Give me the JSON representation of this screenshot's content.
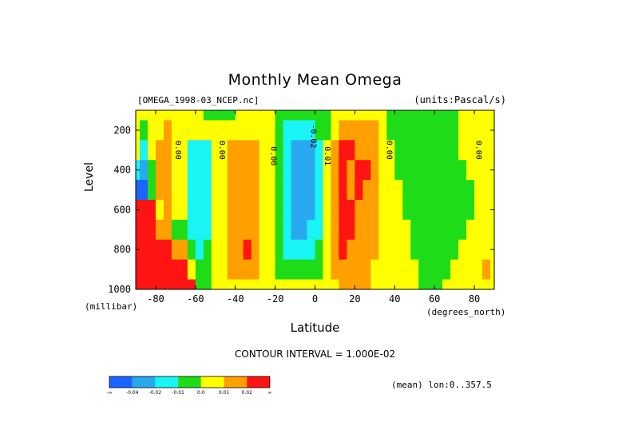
{
  "header": {
    "title": "Monthly Mean Omega",
    "dataset_file": "[OMEGA_1998-03_NCEP.nc]",
    "units": "(units:Pascal/s)"
  },
  "footer": {
    "contour_interval": "CONTOUR INTERVAL = 1.000E-02",
    "mean_label": "(mean) lon:0..357.5"
  },
  "chart_data": {
    "type": "heatmap",
    "title": "Monthly Mean Omega",
    "subtitle": "[OMEGA_1998-03_NCEP.nc]",
    "units": "(units:Pascal/s)",
    "xlabel": "Latitude",
    "xunit": "(degrees_north)",
    "ylabel": "Level",
    "yunit": "(millibar)",
    "xlim": [
      -90,
      90
    ],
    "ylim": [
      1000,
      100
    ],
    "y_inverted": true,
    "x_ticks": [
      -80,
      -60,
      -40,
      -20,
      0,
      20,
      40,
      60,
      80
    ],
    "x_tick_labels": [
      "-80",
      "-60",
      "-40",
      "-20",
      "0",
      "20",
      "40",
      "60",
      "80"
    ],
    "y_ticks": [
      200,
      400,
      600,
      800,
      1000
    ],
    "y_tick_labels": [
      "200",
      "400",
      "600",
      "800",
      "1000"
    ],
    "colorbar": {
      "labels": [
        "-∞",
        "-0.04",
        "-0.02",
        "-0.01",
        "0.0",
        "0.01",
        "0.02",
        "∞"
      ],
      "colors": [
        "#1a64ff",
        "#29a8f0",
        "#19f5f5",
        "#1fdc19",
        "#ffff00",
        "#ff9f00",
        "#ff1414"
      ]
    },
    "contour_labels": [
      {
        "text": "0.00",
        "lat": -70,
        "level": 300
      },
      {
        "text": "0.00",
        "lat": -48,
        "level": 300
      },
      {
        "text": "0.00",
        "lat": -22,
        "level": 330
      },
      {
        "text": "-0.02",
        "lat": -2,
        "level": 230
      },
      {
        "text": "0.01",
        "lat": 5,
        "level": 330
      },
      {
        "text": "0.00",
        "lat": 36,
        "level": 300
      },
      {
        "text": "0.00",
        "lat": 81,
        "level": 300
      }
    ],
    "columns": [
      {
        "lat": -90,
        "values": [
          0.005,
          0.005,
          0.005,
          -0.02,
          -0.05,
          0.025,
          0.03,
          0.03,
          0.03,
          0.03
        ]
      },
      {
        "lat": -86,
        "values": [
          0.0,
          -0.005,
          -0.015,
          -0.03,
          -0.05,
          0.025,
          0.03,
          0.03,
          0.03,
          0.03
        ]
      },
      {
        "lat": -82,
        "values": [
          0.005,
          0.005,
          0.0,
          -0.01,
          -0.01,
          0.025,
          0.03,
          0.03,
          0.03,
          0.03
        ]
      },
      {
        "lat": -78,
        "values": [
          0.005,
          0.005,
          0.012,
          0.015,
          0.015,
          0.005,
          0.015,
          0.025,
          0.025,
          0.025
        ]
      },
      {
        "lat": -74,
        "values": [
          0.005,
          0.012,
          0.012,
          0.012,
          0.012,
          0.012,
          0.015,
          0.025,
          0.03,
          0.025
        ]
      },
      {
        "lat": -70,
        "values": [
          0.005,
          0.005,
          0.005,
          0.005,
          0.005,
          0.005,
          -0.005,
          0.015,
          0.025,
          0.025
        ]
      },
      {
        "lat": -66,
        "values": [
          0.005,
          0.005,
          0.005,
          0.005,
          0.005,
          0.005,
          -0.005,
          0.012,
          0.025,
          0.025
        ]
      },
      {
        "lat": -62,
        "values": [
          0.005,
          0.005,
          -0.015,
          -0.015,
          -0.015,
          -0.015,
          -0.015,
          -0.005,
          0.005,
          0.025
        ]
      },
      {
        "lat": -58,
        "values": [
          0.005,
          0.005,
          -0.015,
          -0.015,
          -0.015,
          -0.015,
          -0.015,
          -0.015,
          -0.005,
          -0.005
        ]
      },
      {
        "lat": -54,
        "values": [
          -0.005,
          0.005,
          -0.015,
          -0.015,
          -0.015,
          -0.015,
          -0.015,
          -0.005,
          -0.005,
          -0.005
        ]
      },
      {
        "lat": -50,
        "values": [
          -0.005,
          0.005,
          0.005,
          0.005,
          0.005,
          0.005,
          0.005,
          0.005,
          0.005,
          0.005
        ]
      },
      {
        "lat": -46,
        "values": [
          -0.005,
          0.005,
          0.005,
          0.005,
          0.005,
          0.005,
          0.005,
          0.005,
          0.005,
          0.005
        ]
      },
      {
        "lat": -42,
        "values": [
          -0.005,
          0.005,
          0.012,
          0.012,
          0.012,
          0.012,
          0.012,
          0.012,
          0.012,
          0.005
        ]
      },
      {
        "lat": -38,
        "values": [
          0.005,
          0.005,
          0.012,
          0.012,
          0.012,
          0.012,
          0.012,
          0.012,
          0.012,
          0.005
        ]
      },
      {
        "lat": -34,
        "values": [
          0.005,
          0.005,
          0.012,
          0.012,
          0.012,
          0.012,
          0.012,
          0.025,
          0.012,
          0.005
        ]
      },
      {
        "lat": -30,
        "values": [
          0.005,
          0.005,
          0.012,
          0.012,
          0.012,
          0.012,
          0.012,
          0.012,
          0.012,
          0.005
        ]
      },
      {
        "lat": -26,
        "values": [
          0.005,
          0.005,
          0.005,
          0.005,
          0.005,
          0.005,
          0.005,
          0.005,
          0.005,
          0.005
        ]
      },
      {
        "lat": -22,
        "values": [
          0.005,
          0.005,
          0.005,
          0.005,
          0.005,
          0.005,
          0.005,
          0.005,
          0.005,
          0.005
        ]
      },
      {
        "lat": -18,
        "values": [
          -0.005,
          -0.005,
          -0.005,
          -0.005,
          -0.005,
          -0.005,
          -0.005,
          -0.005,
          -0.005,
          0.005
        ]
      },
      {
        "lat": -14,
        "values": [
          -0.005,
          -0.015,
          -0.015,
          -0.015,
          -0.015,
          -0.015,
          -0.015,
          -0.015,
          -0.005,
          0.005
        ]
      },
      {
        "lat": -10,
        "values": [
          -0.005,
          -0.015,
          -0.03,
          -0.03,
          -0.03,
          -0.03,
          -0.03,
          -0.015,
          -0.005,
          0.005
        ]
      },
      {
        "lat": -6,
        "values": [
          -0.005,
          -0.015,
          -0.03,
          -0.03,
          -0.03,
          -0.03,
          -0.03,
          -0.015,
          -0.005,
          0.005
        ]
      },
      {
        "lat": -2,
        "values": [
          -0.005,
          -0.015,
          -0.03,
          -0.03,
          -0.03,
          -0.03,
          -0.015,
          -0.015,
          -0.005,
          0.005
        ]
      },
      {
        "lat": 2,
        "values": [
          -0.005,
          -0.005,
          -0.015,
          -0.015,
          -0.015,
          -0.015,
          -0.015,
          -0.005,
          -0.005,
          0.005
        ]
      },
      {
        "lat": 6,
        "values": [
          -0.005,
          -0.005,
          0.005,
          0.005,
          0.005,
          0.005,
          0.005,
          0.005,
          0.005,
          0.005
        ]
      },
      {
        "lat": 10,
        "values": [
          0.005,
          0.005,
          0.012,
          0.012,
          0.012,
          0.012,
          0.012,
          0.012,
          0.012,
          0.005
        ]
      },
      {
        "lat": 14,
        "values": [
          0.005,
          0.012,
          0.025,
          0.025,
          0.025,
          0.025,
          0.025,
          0.025,
          0.012,
          0.012
        ]
      },
      {
        "lat": 18,
        "values": [
          0.005,
          0.012,
          0.025,
          0.012,
          0.012,
          0.025,
          0.025,
          0.012,
          0.012,
          0.012
        ]
      },
      {
        "lat": 22,
        "values": [
          0.005,
          0.012,
          0.012,
          0.025,
          0.025,
          0.012,
          0.012,
          0.012,
          0.012,
          0.012
        ]
      },
      {
        "lat": 26,
        "values": [
          0.005,
          0.012,
          0.012,
          0.025,
          0.012,
          0.012,
          0.012,
          0.012,
          0.012,
          0.012
        ]
      },
      {
        "lat": 30,
        "values": [
          0.005,
          0.012,
          0.012,
          0.012,
          0.012,
          0.012,
          0.012,
          0.012,
          0.005,
          0.005
        ]
      },
      {
        "lat": 34,
        "values": [
          0.005,
          0.005,
          0.005,
          0.005,
          0.005,
          0.005,
          0.005,
          0.005,
          0.005,
          0.005
        ]
      },
      {
        "lat": 38,
        "values": [
          -0.005,
          -0.005,
          0.005,
          0.005,
          0.005,
          0.005,
          0.005,
          0.005,
          0.005,
          0.005
        ]
      },
      {
        "lat": 42,
        "values": [
          -0.005,
          -0.005,
          -0.005,
          -0.005,
          0.005,
          0.005,
          0.005,
          0.005,
          0.005,
          0.005
        ]
      },
      {
        "lat": 46,
        "values": [
          -0.005,
          -0.005,
          -0.005,
          -0.005,
          -0.005,
          -0.005,
          0.005,
          0.005,
          0.005,
          0.005
        ]
      },
      {
        "lat": 50,
        "values": [
          -0.005,
          -0.005,
          -0.005,
          -0.005,
          -0.005,
          -0.005,
          -0.005,
          -0.005,
          0.005,
          0.005
        ]
      },
      {
        "lat": 54,
        "values": [
          -0.005,
          -0.005,
          -0.005,
          -0.005,
          -0.005,
          -0.005,
          -0.005,
          -0.005,
          -0.005,
          -0.005
        ]
      },
      {
        "lat": 58,
        "values": [
          -0.005,
          -0.005,
          -0.005,
          -0.005,
          -0.005,
          -0.005,
          -0.005,
          -0.005,
          -0.005,
          -0.005
        ]
      },
      {
        "lat": 62,
        "values": [
          -0.005,
          -0.005,
          -0.005,
          -0.005,
          -0.005,
          -0.005,
          -0.005,
          -0.005,
          -0.005,
          -0.005
        ]
      },
      {
        "lat": 66,
        "values": [
          -0.005,
          -0.005,
          -0.005,
          -0.005,
          -0.005,
          -0.005,
          -0.005,
          -0.005,
          -0.005,
          0.005
        ]
      },
      {
        "lat": 70,
        "values": [
          -0.005,
          -0.005,
          -0.005,
          -0.005,
          -0.005,
          -0.005,
          -0.005,
          -0.005,
          0.005,
          0.005
        ]
      },
      {
        "lat": 74,
        "values": [
          0.005,
          0.005,
          0.005,
          -0.005,
          -0.005,
          -0.005,
          -0.005,
          0.005,
          0.005,
          0.005
        ]
      },
      {
        "lat": 78,
        "values": [
          0.005,
          0.005,
          0.005,
          0.005,
          -0.005,
          -0.005,
          0.005,
          0.005,
          0.005,
          0.005
        ]
      },
      {
        "lat": 82,
        "values": [
          0.005,
          0.005,
          0.005,
          0.005,
          0.005,
          0.005,
          0.005,
          0.005,
          0.005,
          0.005
        ]
      },
      {
        "lat": 86,
        "values": [
          0.005,
          0.005,
          0.005,
          0.005,
          0.005,
          0.005,
          0.005,
          0.005,
          0.012,
          0.005
        ]
      },
      {
        "lat": 90,
        "values": [
          0.005,
          0.005,
          0.005,
          0.005,
          0.005,
          0.005,
          0.005,
          0.005,
          0.005,
          0.005
        ]
      }
    ],
    "levels": [
      100,
      200,
      300,
      400,
      500,
      600,
      700,
      800,
      900,
      1000
    ]
  }
}
